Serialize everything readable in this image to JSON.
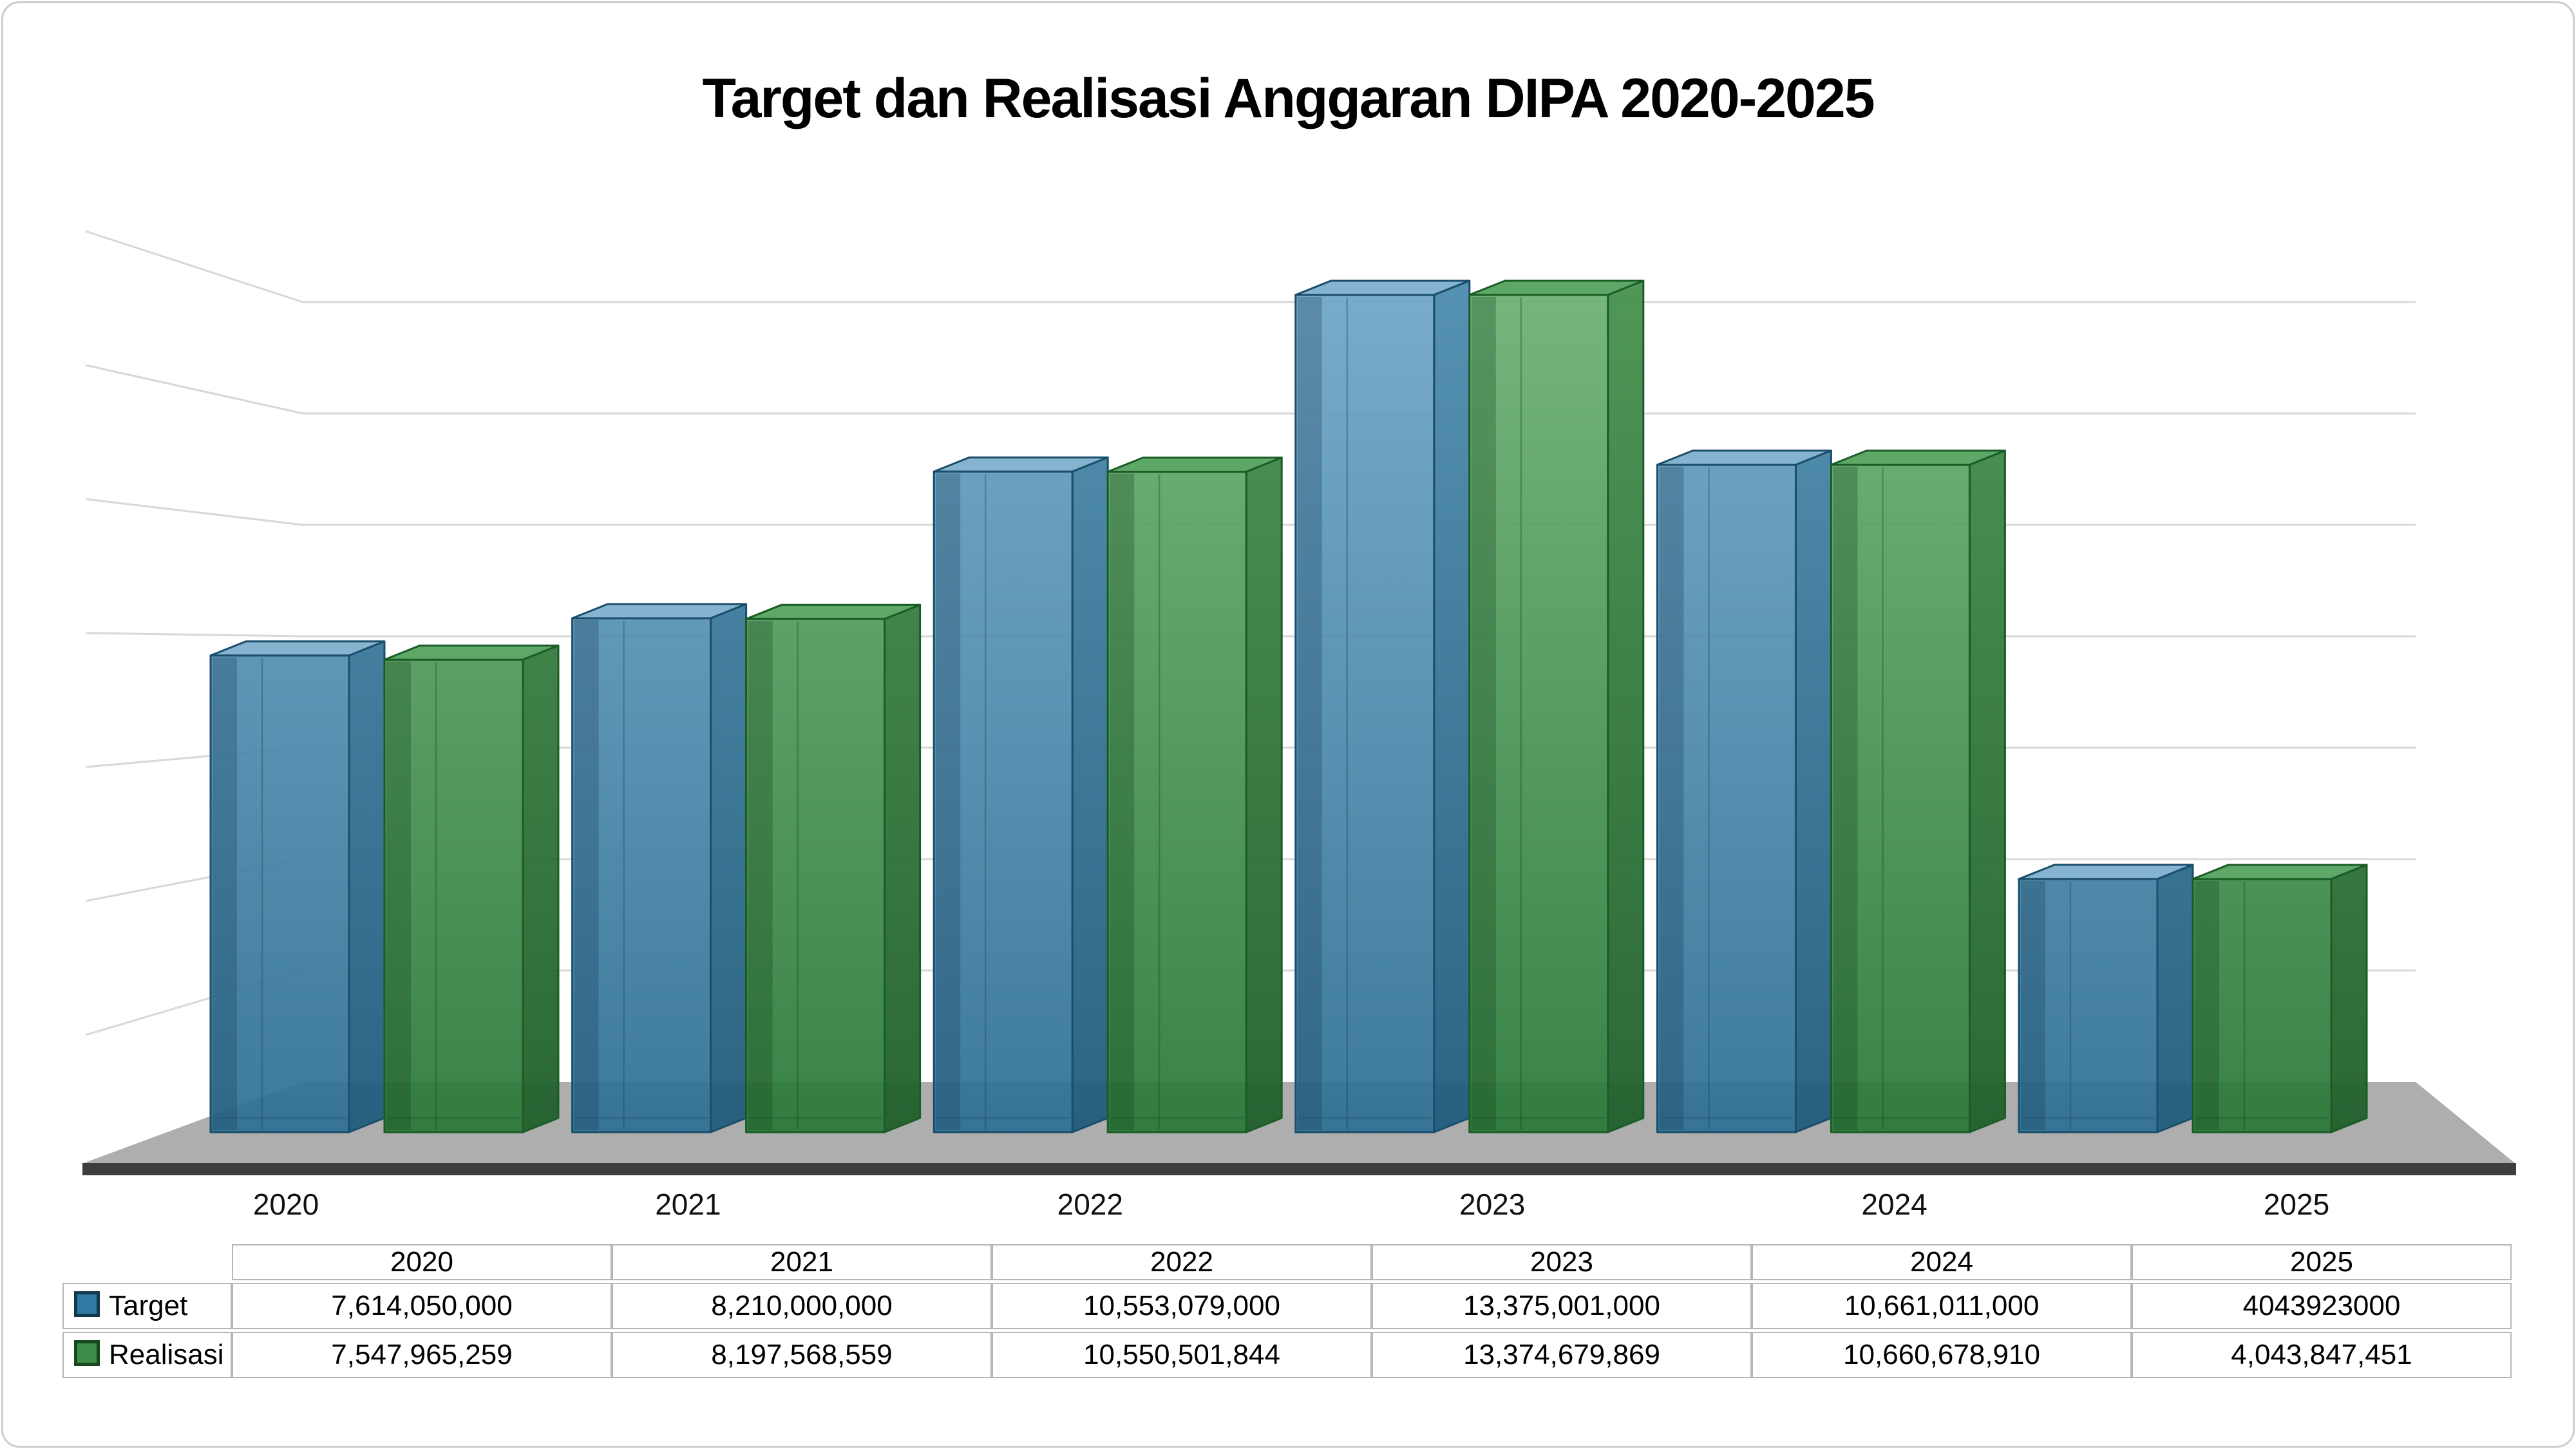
{
  "title": "Target dan Realisasi Anggaran DIPA 2020-2025",
  "chart_data": {
    "type": "bar",
    "style": "3d-clustered-column",
    "title": "Target dan Realisasi Anggaran DIPA 2020-2025",
    "categories": [
      "2020",
      "2021",
      "2022",
      "2023",
      "2024",
      "2025"
    ],
    "series": [
      {
        "name": "Target",
        "color": "#2F7BA3",
        "values": [
          7614050000,
          8210000000,
          10553079000,
          13375001000,
          10661011000,
          4043923000
        ]
      },
      {
        "name": "Realisasi",
        "color": "#3E8B48",
        "values": [
          7547965259,
          8197568559,
          10550501844,
          13374679869,
          10660678910,
          4043847451
        ]
      }
    ],
    "xlabel": "",
    "ylabel": "",
    "ylim": [
      0,
      14000000000
    ],
    "gridline_step": 2000000000,
    "grid": "horizontal gridlines on 3D back wall, unlabeled",
    "legend_position": "in table row headers"
  },
  "table": {
    "corner_label": "",
    "col_headers": [
      "2020",
      "2021",
      "2022",
      "2023",
      "2024",
      "2025"
    ],
    "rows": [
      {
        "label": "Target",
        "swatch_color": "#2F7BA3",
        "swatch_border": "#14384C",
        "cells": [
          "7,614,050,000",
          "8,210,000,000",
          "10,553,079,000",
          "13,375,001,000",
          "10,661,011,000",
          "4043923000"
        ]
      },
      {
        "label": "Realisasi",
        "swatch_color": "#3E8B48",
        "swatch_border": "#17491F",
        "cells": [
          "7,547,965,259",
          "8,197,568,559",
          "10,550,501,844",
          "13,374,679,869",
          "10,660,678,910",
          "4,043,847,451"
        ]
      }
    ]
  },
  "colors": {
    "background": "#FFFFFF",
    "gridline": "#D8D8D8",
    "floor": "#AEAEAE",
    "floor_edge": "#3E3E3E",
    "blue_front_top": "#6FA7C8",
    "blue_front_bottom": "#2C6E93",
    "blue_side_top": "#4E8DB0",
    "blue_side_bottom": "#205C7C",
    "blue_top_face": "#82B2CE",
    "blue_stroke": "#1A4E6B",
    "blue_inner": "#123A52",
    "green_front_top": "#6CB274",
    "green_front_bottom": "#287837",
    "green_side_top": "#47934F",
    "green_side_bottom": "#1F5F2B",
    "green_top_face": "#58A562",
    "green_stroke": "#1B5C26",
    "green_inner": "#0E3D18",
    "axis_label": "#111111"
  }
}
